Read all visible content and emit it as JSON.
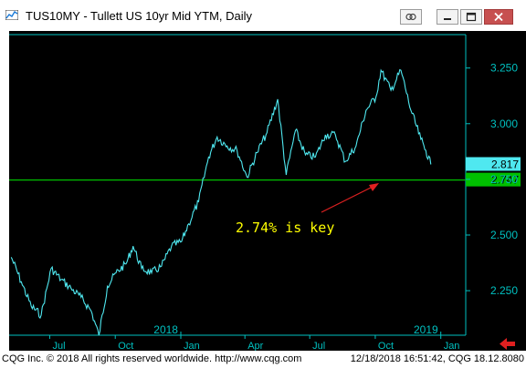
{
  "window": {
    "title": "TUS10MY - Tullett US 10yr Mid YTM, Daily",
    "controls": [
      "link-icon",
      "minimize-icon",
      "maximize-icon",
      "close-icon"
    ]
  },
  "chart_data": {
    "type": "line",
    "title": "",
    "ylim": [
      2.05,
      3.4
    ],
    "y_ticks": [
      {
        "value": 3.25,
        "label": "3.250"
      },
      {
        "value": 3.0,
        "label": "3.000"
      },
      {
        "value": 2.75,
        "label": "2.750"
      },
      {
        "value": 2.5,
        "label": "2.500"
      },
      {
        "value": 2.25,
        "label": "2.250"
      }
    ],
    "x_ticks": [
      {
        "date": "2017-07-01",
        "label": "Jul"
      },
      {
        "date": "2017-10-01",
        "label": "Oct"
      },
      {
        "date": "2018-01-01",
        "label": "Jan"
      },
      {
        "date": "2018-04-01",
        "label": "Apr"
      },
      {
        "date": "2018-07-01",
        "label": "Jul"
      },
      {
        "date": "2018-10-01",
        "label": "Oct"
      },
      {
        "date": "2019-01-01",
        "label": "Jan"
      }
    ],
    "year_labels": [
      {
        "date": "2018-01-01",
        "label": "2018"
      },
      {
        "date": "2019-01-01",
        "label": "2019"
      }
    ],
    "xlim": [
      "2017-05-05",
      "2019-02-05"
    ],
    "series": [
      {
        "color": "#4fe8f0",
        "points": [
          [
            "2017-05-08",
            2.4
          ],
          [
            "2017-05-22",
            2.29
          ],
          [
            "2017-06-05",
            2.18
          ],
          [
            "2017-06-19",
            2.14
          ],
          [
            "2017-07-03",
            2.35
          ],
          [
            "2017-07-17",
            2.3
          ],
          [
            "2017-07-31",
            2.26
          ],
          [
            "2017-08-14",
            2.22
          ],
          [
            "2017-08-28",
            2.16
          ],
          [
            "2017-09-08",
            2.05
          ],
          [
            "2017-09-20",
            2.27
          ],
          [
            "2017-10-02",
            2.33
          ],
          [
            "2017-10-16",
            2.37
          ],
          [
            "2017-10-26",
            2.45
          ],
          [
            "2017-11-07",
            2.35
          ],
          [
            "2017-11-21",
            2.33
          ],
          [
            "2017-12-05",
            2.36
          ],
          [
            "2017-12-19",
            2.45
          ],
          [
            "2018-01-02",
            2.47
          ],
          [
            "2018-01-12",
            2.55
          ],
          [
            "2018-01-26",
            2.65
          ],
          [
            "2018-02-09",
            2.85
          ],
          [
            "2018-02-21",
            2.94
          ],
          [
            "2018-03-07",
            2.9
          ],
          [
            "2018-03-21",
            2.88
          ],
          [
            "2018-04-04",
            2.76
          ],
          [
            "2018-04-18",
            2.87
          ],
          [
            "2018-05-02",
            2.96
          ],
          [
            "2018-05-17",
            3.11
          ],
          [
            "2018-05-29",
            2.77
          ],
          [
            "2018-06-11",
            2.97
          ],
          [
            "2018-06-25",
            2.86
          ],
          [
            "2018-07-09",
            2.85
          ],
          [
            "2018-07-23",
            2.95
          ],
          [
            "2018-08-06",
            2.95
          ],
          [
            "2018-08-20",
            2.83
          ],
          [
            "2018-09-04",
            2.9
          ],
          [
            "2018-09-18",
            3.06
          ],
          [
            "2018-10-02",
            3.12
          ],
          [
            "2018-10-09",
            3.24
          ],
          [
            "2018-10-23",
            3.15
          ],
          [
            "2018-11-06",
            3.24
          ],
          [
            "2018-11-20",
            3.06
          ],
          [
            "2018-12-04",
            2.93
          ],
          [
            "2018-12-11",
            2.88
          ],
          [
            "2018-12-18",
            2.817
          ]
        ]
      }
    ],
    "price_label": {
      "value": 2.817,
      "label": "2.817",
      "color": "#4fe8f0"
    },
    "horizontal_line": {
      "value": 2.747,
      "label": "2.747",
      "color": "#00c000"
    },
    "annotation": {
      "text": "2.74% is key",
      "color": "#ffff00",
      "arrow_color": "#e02020"
    }
  },
  "nav_arrow": "left-arrow-icon",
  "status": {
    "left": "CQG Inc. © 2018 All rights reserved worldwide. http://www.cqg.com",
    "right": "12/18/2018 16:51:42, CQG 18.12.8080"
  }
}
